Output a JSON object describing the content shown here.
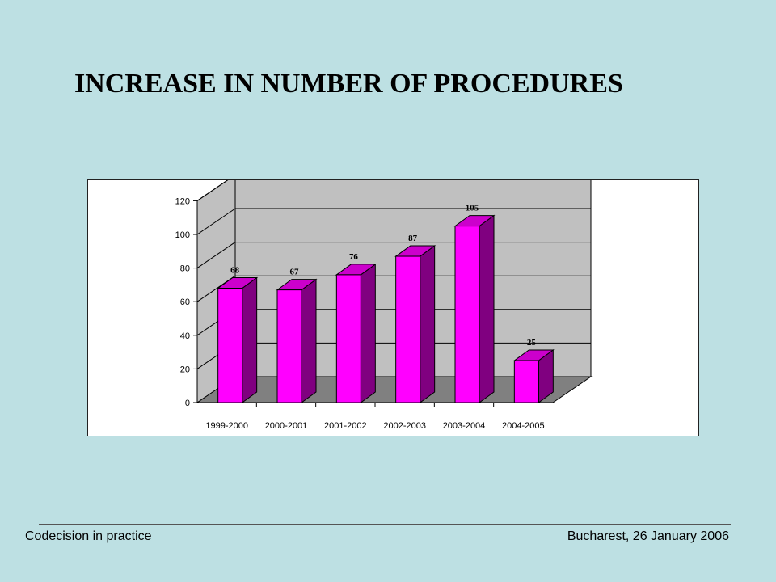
{
  "slide": {
    "title": "INCREASE IN NUMBER OF PROCEDURES",
    "footer_left": "Codecision in practice",
    "footer_right": "Bucharest, 26 January 2006"
  },
  "chart_data": {
    "type": "bar",
    "title": "",
    "xlabel": "",
    "ylabel": "",
    "categories": [
      "1999-2000",
      "2000-2001",
      "2001-2002",
      "2002-2003",
      "2003-2004",
      "2004-2005"
    ],
    "values": [
      68,
      67,
      76,
      87,
      105,
      25
    ],
    "ylim": [
      0,
      120
    ],
    "yticks": [
      0,
      20,
      40,
      60,
      80,
      100,
      120
    ],
    "grid": true,
    "style": "3d-bar",
    "colors": {
      "bar_front": "#ff00ff",
      "bar_side": "#800080",
      "bar_top": "#cc00cc",
      "back_wall": "#c0c0c0",
      "side_wall": "#c0c0c0",
      "floor": "#808080"
    }
  }
}
